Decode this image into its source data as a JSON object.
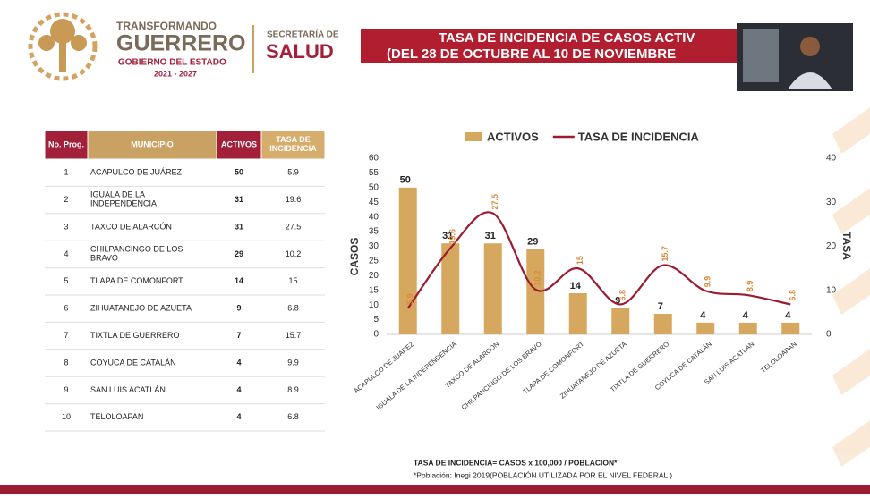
{
  "header": {
    "brand_top": "TRANSFORMANDO",
    "brand_main": "GUERRERO",
    "brand_sub": "GOBIERNO DEL ESTADO",
    "brand_years": "2021 - 2027",
    "dept_top": "SECRETARÍA DE",
    "dept_main": "SALUD",
    "title_line1": "TASA DE INCIDENCIA DE CASOS ACTIV",
    "title_line2": "(DEL 28 DE OCTUBRE AL 10 DE NOVIEMBRE"
  },
  "table": {
    "headers": [
      "No. Prog.",
      "MUNICIPIO",
      "ACTIVOS",
      "TASA DE INCIDENCIA"
    ],
    "rows": [
      [
        1,
        "ACAPULCO DE JUÁREZ",
        50,
        5.9
      ],
      [
        2,
        "IGUALA DE LA INDEPENDENCIA",
        31,
        19.6
      ],
      [
        3,
        "TAXCO DE ALARCÓN",
        31,
        27.5
      ],
      [
        4,
        "CHILPANCINGO DE LOS BRAVO",
        29,
        10.2
      ],
      [
        5,
        "TLAPA DE COMONFORT",
        14,
        15
      ],
      [
        6,
        "ZIHUATANEJO DE AZUETA",
        9,
        6.8
      ],
      [
        7,
        "TIXTLA DE GUERRERO",
        7,
        15.7
      ],
      [
        8,
        "COYUCA DE CATALÁN",
        4,
        9.9
      ],
      [
        9,
        "SAN LUIS ACATLÁN",
        4,
        8.9
      ],
      [
        10,
        "TELOLOAPAN",
        4,
        6.8
      ]
    ]
  },
  "chart_data": {
    "type": "bar-line",
    "categories": [
      "ACAPULCO DE JUAREZ",
      "IGUALA DE LA INDEPENDENCIA",
      "TAXCO DE ALARCÓN",
      "CHILPANCINGO DE LOS BRAVO",
      "TLAPA DE COMONFORT",
      "ZIHUATANEJO DE AZUETA",
      "TIXTLA DE GUERRERO",
      "COYUCA DE CATALÁN",
      "SAN LUIS ACATLÁN",
      "TELOLOAPAN"
    ],
    "series": [
      {
        "name": "ACTIVOS",
        "type": "bar",
        "color": "#d6a85f",
        "values": [
          50,
          31,
          31,
          29,
          14,
          9,
          7,
          4,
          4,
          4
        ]
      },
      {
        "name": "TASA DE INCIDENCIA",
        "type": "line",
        "axis": "y2",
        "color": "#9b1b30",
        "values": [
          5.9,
          19.6,
          27.5,
          10.2,
          15,
          6.8,
          15.7,
          9.9,
          8.9,
          6.8
        ]
      }
    ],
    "ylabel": "CASOS",
    "y2label": "TASA",
    "ylim": [
      0,
      60
    ],
    "yticks": [
      0,
      5,
      10,
      15,
      20,
      25,
      30,
      35,
      40,
      45,
      50,
      55,
      60
    ],
    "y2lim": [
      0,
      40
    ],
    "y2ticks": [
      0,
      10,
      20,
      30,
      40
    ],
    "legend": "top"
  },
  "footer": {
    "note1": "TASA DE INCIDENCIA= CASOS x 100,000 / POBLACION*",
    "note2": "*Población: Inegi 2019(POBLACIÓN UTILIZADA POR EL NIVEL FEDERAL )"
  }
}
